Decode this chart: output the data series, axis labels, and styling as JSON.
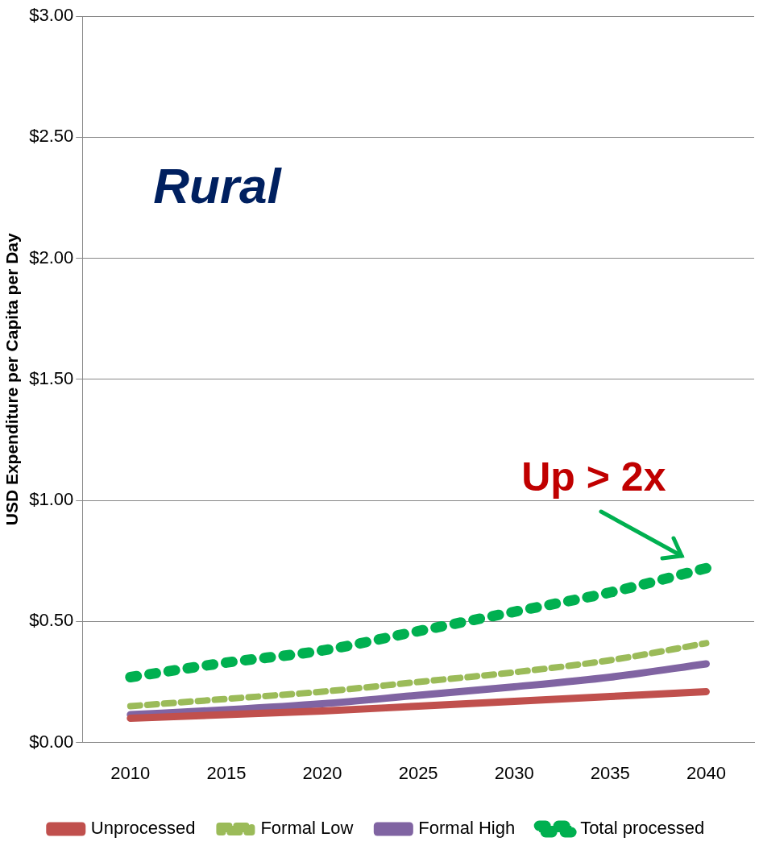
{
  "chart_data": {
    "type": "line",
    "ylabel": "USD Expenditure per Capita per Day",
    "categories": [
      "2010",
      "2015",
      "2020",
      "2025",
      "2030",
      "2035",
      "2040"
    ],
    "series": [
      {
        "name": "Unprocessed",
        "color": "#c0504d",
        "line_style": "solid",
        "values": [
          0.1,
          0.115,
          0.13,
          0.15,
          0.17,
          0.19,
          0.21
        ]
      },
      {
        "name": "Formal Low",
        "color": "#9bbb59",
        "line_style": "dashed",
        "values": [
          0.15,
          0.18,
          0.21,
          0.25,
          0.29,
          0.34,
          0.41
        ]
      },
      {
        "name": "Formal High",
        "color": "#8064a2",
        "line_style": "solid",
        "values": [
          0.115,
          0.135,
          0.16,
          0.195,
          0.23,
          0.27,
          0.325
        ]
      },
      {
        "name": "Total processed",
        "color": "#00b050",
        "line_style": "dotted",
        "values": [
          0.27,
          0.33,
          0.38,
          0.46,
          0.54,
          0.62,
          0.72
        ]
      }
    ],
    "ylim": [
      0,
      3
    ],
    "yticks": [
      {
        "value": 0,
        "label": "$0.00"
      },
      {
        "value": 0.5,
        "label": "$0.50"
      },
      {
        "value": 1,
        "label": "$1.00"
      },
      {
        "value": 1.5,
        "label": "$1.50"
      },
      {
        "value": 2,
        "label": "$2.00"
      },
      {
        "value": 2.5,
        "label": "$2.50"
      },
      {
        "value": 3,
        "label": "$3.00"
      }
    ],
    "grid": "y",
    "legend": "bottom",
    "marker": "none",
    "annotations": [
      "Rural",
      {
        "text": "Up > 2x",
        "x": "2040",
        "y": 0.72
      }
    ]
  }
}
